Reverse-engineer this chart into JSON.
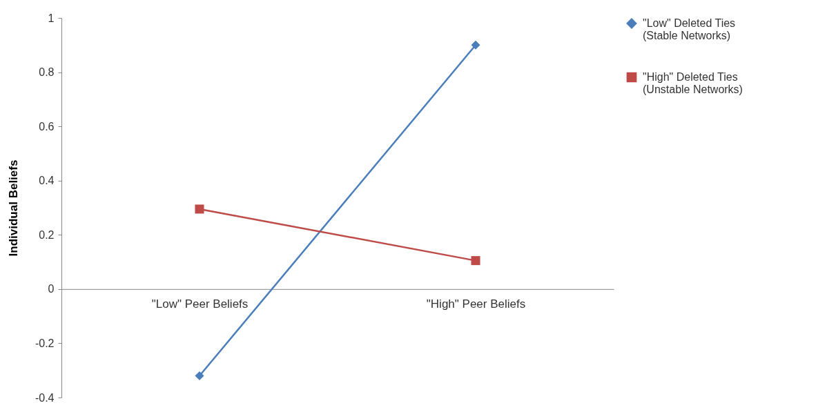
{
  "chart_data": {
    "type": "line",
    "ylabel": "Individual Beliefs",
    "categories": [
      "\"Low\" Peer Beliefs",
      "\"High\" Peer Beliefs"
    ],
    "series": [
      {
        "name": "\"Low\" Deleted Ties (Stable Networks)",
        "color": "#4a7ebb",
        "marker": "diamond",
        "values": [
          -0.32,
          0.9
        ]
      },
      {
        "name": "\"High\" Deleted Ties (Unstable Networks)",
        "color": "#be4b48",
        "marker": "square",
        "values": [
          0.295,
          0.105
        ]
      }
    ],
    "ylim": [
      -0.4,
      1
    ],
    "yticks": [
      -0.4,
      -0.2,
      0,
      0.2,
      0.4,
      0.6,
      0.8,
      1
    ],
    "grid": false,
    "legend": "right"
  }
}
